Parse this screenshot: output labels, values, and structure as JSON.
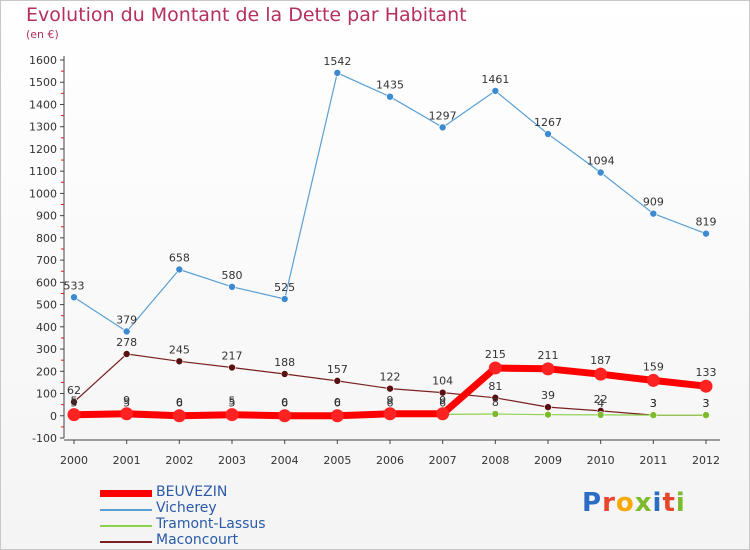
{
  "title": "Evolution du Montant de la Dette par Habitant",
  "unit": "(en €)",
  "logo_text": "Proxiti",
  "logo_colors": [
    "#2b6cc4",
    "#e8462c",
    "#f5a800",
    "#7dbb2c",
    "#2b6cc4",
    "#e8462c",
    "#7dbb2c"
  ],
  "chart_data": {
    "type": "line",
    "title": "Evolution du Montant de la Dette par Habitant",
    "ylabel": "(en €)",
    "xlabel": "",
    "x": [
      "2000",
      "2001",
      "2002",
      "2003",
      "2004",
      "2005",
      "2006",
      "2007",
      "2008",
      "2009",
      "2010",
      "2011",
      "2012"
    ],
    "ylim": [
      -100,
      1600
    ],
    "yticks": [
      -100,
      0,
      100,
      200,
      300,
      400,
      500,
      600,
      700,
      800,
      900,
      1000,
      1100,
      1200,
      1300,
      1400,
      1500,
      1600
    ],
    "grid": false,
    "legend": "bottom-left",
    "series": [
      {
        "name": "BEUVEZIN",
        "color": "#ff0000",
        "marker": "#ff2222",
        "values": [
          5,
          9,
          0,
          5,
          0,
          0,
          9,
          9,
          215,
          211,
          187,
          159,
          133
        ],
        "labels": [
          "5",
          "9",
          "0",
          "5",
          "0",
          "0",
          "9",
          "9",
          "215",
          "211",
          "187",
          "159",
          "133"
        ]
      },
      {
        "name": "Vicherey",
        "color": "#5a9fd4",
        "marker": "#3e8ad0",
        "values": [
          533,
          379,
          658,
          580,
          525,
          1542,
          1435,
          1297,
          1461,
          1267,
          1094,
          909,
          819
        ],
        "labels": [
          "533",
          "379",
          "658",
          "580",
          "525",
          "1542",
          "1435",
          "1297",
          "1461",
          "1267",
          "1094",
          "909",
          "819"
        ]
      },
      {
        "name": "Tramont-Lassus",
        "color": "#8fd14f",
        "marker": "#7dbb2c",
        "values": [
          5,
          5,
          6,
          5,
          6,
          6,
          6,
          6,
          8,
          5,
          4,
          3,
          3
        ],
        "labels": [
          "5",
          "5",
          "6",
          "5",
          "6",
          "6",
          "6",
          "6",
          "8",
          "",
          "4",
          "3",
          "3"
        ]
      },
      {
        "name": "Maconcourt",
        "color": "#7a2020",
        "marker": "#5a1010",
        "values": [
          62,
          278,
          245,
          217,
          188,
          157,
          122,
          104,
          81,
          39,
          22,
          3,
          3
        ],
        "labels": [
          "62",
          "278",
          "245",
          "217",
          "188",
          "157",
          "122",
          "104",
          "81",
          "39",
          "22",
          "3",
          "3"
        ]
      }
    ]
  }
}
